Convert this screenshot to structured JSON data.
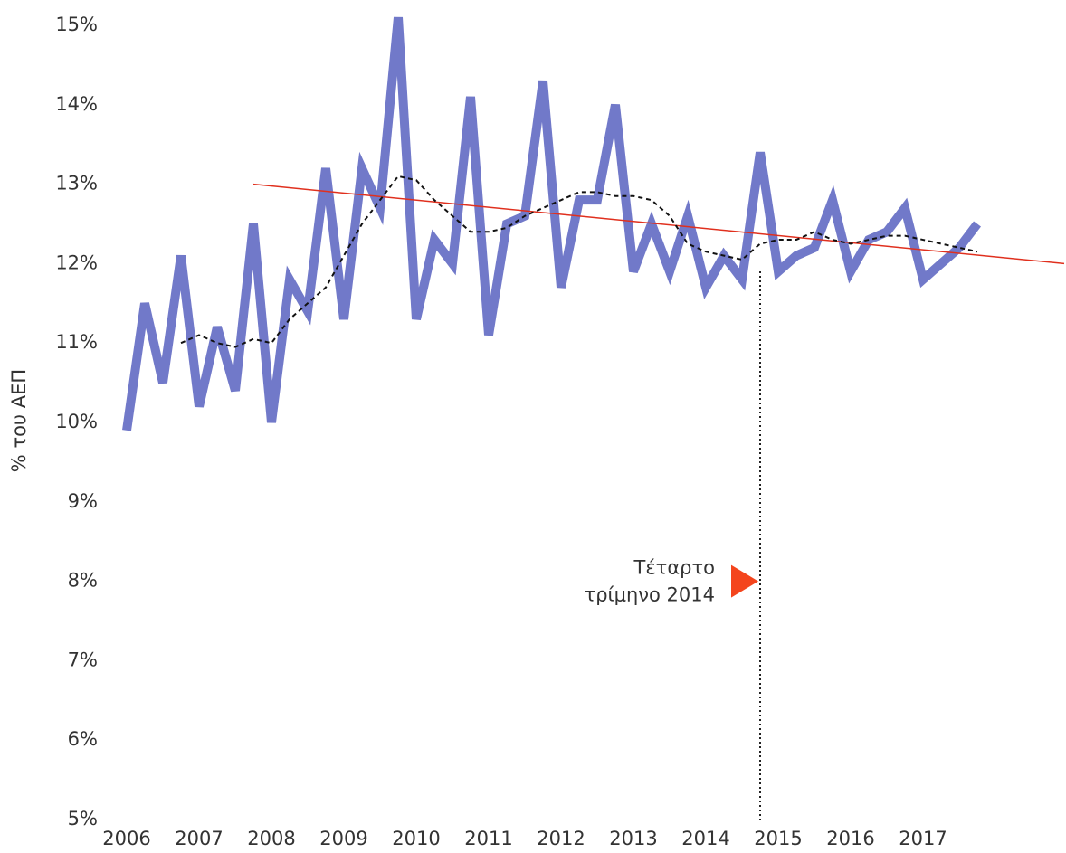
{
  "chart_data": {
    "type": "line",
    "y_axis_label": "% του ΑΕΠ",
    "x": [
      2006,
      2006.25,
      2006.5,
      2006.75,
      2007,
      2007.25,
      2007.5,
      2007.75,
      2008,
      2008.25,
      2008.5,
      2008.75,
      2009,
      2009.25,
      2009.5,
      2009.75,
      2010,
      2010.25,
      2010.5,
      2010.75,
      2011,
      2011.25,
      2011.5,
      2011.75,
      2012,
      2012.25,
      2012.5,
      2012.75,
      2013,
      2013.25,
      2013.5,
      2013.75,
      2014,
      2014.25,
      2014.5,
      2014.75,
      2015,
      2015.25,
      2015.5,
      2015.75,
      2016,
      2016.25,
      2016.5,
      2016.75,
      2017,
      2017.25,
      2017.5,
      2017.75
    ],
    "series": [
      {
        "color": "#7179c9",
        "values": [
          9.9,
          11.5,
          10.5,
          12.1,
          10.2,
          11.2,
          10.4,
          12.5,
          10.0,
          11.8,
          11.4,
          13.2,
          11.3,
          13.2,
          12.7,
          15.1,
          11.3,
          12.3,
          12.0,
          14.1,
          11.1,
          12.5,
          12.6,
          14.3,
          11.7,
          12.8,
          12.8,
          14.0,
          11.9,
          12.5,
          11.9,
          12.6,
          11.7,
          12.1,
          11.8,
          13.4,
          11.9,
          12.1,
          12.2,
          12.8,
          11.9,
          12.3,
          12.4,
          12.7,
          11.8,
          12.0,
          12.2,
          12.5
        ]
      },
      {
        "color": "#111111",
        "dashed": true,
        "values": [
          null,
          null,
          null,
          11.0,
          11.1,
          11.0,
          10.95,
          11.05,
          11.0,
          11.3,
          11.5,
          11.7,
          12.1,
          12.5,
          12.8,
          13.1,
          13.05,
          12.8,
          12.6,
          12.4,
          12.4,
          12.45,
          12.6,
          12.7,
          12.8,
          12.9,
          12.9,
          12.85,
          12.85,
          12.8,
          12.6,
          12.25,
          12.15,
          12.1,
          12.05,
          12.25,
          12.3,
          12.3,
          12.4,
          12.3,
          12.25,
          12.3,
          12.35,
          12.35,
          12.3,
          12.25,
          12.2,
          12.15
        ]
      }
    ],
    "trend": {
      "color": "#e0301e",
      "x": [
        2007.75,
        2018.95
      ],
      "values": [
        13.0,
        12.0
      ]
    },
    "annotation": {
      "x": 2014.75,
      "y": 8,
      "color": "#f4451d",
      "lines": [
        "Τέταρτο",
        "τρίμηνο 2014"
      ]
    },
    "xlim": [
      2006,
      2019
    ],
    "xticks": [
      2006,
      2007,
      2008,
      2009,
      2010,
      2011,
      2012,
      2013,
      2014,
      2015,
      2016,
      2017
    ],
    "ylim": [
      5,
      15
    ],
    "yticks": [
      {
        "value": 5,
        "label": "5%"
      },
      {
        "value": 6,
        "label": "6%"
      },
      {
        "value": 7,
        "label": "7%"
      },
      {
        "value": 8,
        "label": "8%"
      },
      {
        "value": 9,
        "label": "9%"
      },
      {
        "value": 10,
        "label": "10%"
      },
      {
        "value": 11,
        "label": "11%"
      },
      {
        "value": 12,
        "label": "12%"
      },
      {
        "value": 13,
        "label": "13%"
      },
      {
        "value": 14,
        "label": "14%"
      },
      {
        "value": 15,
        "label": "15%"
      }
    ],
    "grid": false
  }
}
